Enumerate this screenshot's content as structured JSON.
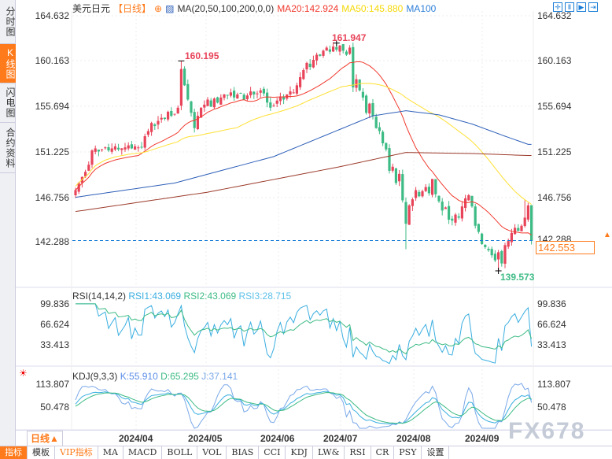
{
  "sidebar": {
    "tabs": [
      {
        "label": "分时图"
      },
      {
        "label": "K线图",
        "active": true
      },
      {
        "label": "闪电图"
      },
      {
        "label": "合约资料"
      }
    ]
  },
  "header": {
    "symbol": "美元日元",
    "period": "【日线】",
    "indicator": "MA(20,50,100,200,0,0)",
    "ma20": "MA20:142.924",
    "ma50": "MA50:145.880",
    "ma100": "MA100"
  },
  "tools": [
    "crosshair",
    "zoom-fit",
    "play",
    "next"
  ],
  "main": {
    "price_ticks": [
      "164.632",
      "160.163",
      "155.694",
      "151.225",
      "146.756",
      "142.288"
    ],
    "current_price": "142.553",
    "high_label": "161.947",
    "high2_label": "160.195",
    "low_label": "139.573"
  },
  "rsi": {
    "title": "RSI(14,14,2)",
    "rsi1": "RSI1:43.069",
    "rsi2": "RSI2:43.069",
    "rsi3": "RSI3:28.715",
    "ticks": [
      "99.836",
      "66.624",
      "33.413"
    ]
  },
  "kdj": {
    "title": "KDJ(9,3,3)",
    "k": "K:55.910",
    "d": "D:65.295",
    "j": "J:37.141",
    "ticks": [
      "113.807",
      "50.478"
    ]
  },
  "dates": [
    "2024/04",
    "2024/05",
    "2024/06",
    "2024/07",
    "2024/08",
    "2024/09"
  ],
  "period_button": "日线▲",
  "watermark": "FX678",
  "toolbar": [
    "指标",
    "模板",
    "VIP指标",
    "MA",
    "MACD",
    "BOLL",
    "VOL",
    "BIAS",
    "CCI",
    "KDJ",
    "LW&",
    "RSI",
    "CR",
    "PSY",
    "设置"
  ],
  "colors": {
    "up": "#e8445a",
    "down": "#3dbb85",
    "ma20": "#f03a2e",
    "ma50": "#ffe033",
    "ma100": "#2d5fb8",
    "ma200": "#9b3a2a",
    "accent": "#ff7a1a"
  },
  "chart_data": {
    "type": "candlestick",
    "ylim": [
      139,
      164.632
    ],
    "closes": [
      147.5,
      148.2,
      148.8,
      149.3,
      150.0,
      151.4,
      151.6,
      151.3,
      151.5,
      151.7,
      151.4,
      151.6,
      151.8,
      151.5,
      151.6,
      151.7,
      151.9,
      151.6,
      151.8,
      151.7,
      151.7,
      152.8,
      153.3,
      154.1,
      153.8,
      154.3,
      154.6,
      154.5,
      155.2,
      154.8,
      155.0,
      155.6,
      159.4,
      157.8,
      156.4,
      155.1,
      153.6,
      154.8,
      155.6,
      155.9,
      156.4,
      155.7,
      156.5,
      156.1,
      156.6,
      156.9,
      156.8,
      157.1,
      156.6,
      156.9,
      157.0,
      156.4,
      156.8,
      157.2,
      156.9,
      157.0,
      157.3,
      157.0,
      156.1,
      155.6,
      155.8,
      156.3,
      156.7,
      156.4,
      156.9,
      157.2,
      157.1,
      157.8,
      158.6,
      159.3,
      160.0,
      159.6,
      160.3,
      160.8,
      160.7,
      161.2,
      161.5,
      161.1,
      161.6,
      161.3,
      161.7,
      161.2,
      160.8,
      161.5,
      157.6,
      158.4,
      157.3,
      156.6,
      155.1,
      156.0,
      154.8,
      153.6,
      153.3,
      152.1,
      151.5,
      149.4,
      149.8,
      148.2,
      149.1,
      146.5,
      144.2,
      146.0,
      146.6,
      147.5,
      146.9,
      147.4,
      147.8,
      147.2,
      148.6,
      147.1,
      146.4,
      145.5,
      145.8,
      144.6,
      144.5,
      145.1,
      144.8,
      145.9,
      146.7,
      147.0,
      145.9,
      144.0,
      143.4,
      142.2,
      141.9,
      141.6,
      141.1,
      140.6,
      141.4,
      140.3,
      142.1,
      142.5,
      143.3,
      143.8,
      143.5,
      144.0,
      144.8,
      146.0,
      142.553
    ],
    "ma100": [
      [
        0,
        146.8
      ],
      [
        30,
        148.2
      ],
      [
        60,
        150.8
      ],
      [
        90,
        154.8
      ],
      [
        100,
        155.3
      ],
      [
        110,
        154.9
      ],
      [
        120,
        154.0
      ],
      [
        130,
        152.8
      ],
      [
        137,
        152.0
      ]
    ],
    "ma200": [
      [
        0,
        145.4
      ],
      [
        40,
        147.3
      ],
      [
        80,
        149.8
      ],
      [
        100,
        151.2
      ],
      [
        120,
        151.1
      ],
      [
        137,
        150.9
      ]
    ]
  }
}
